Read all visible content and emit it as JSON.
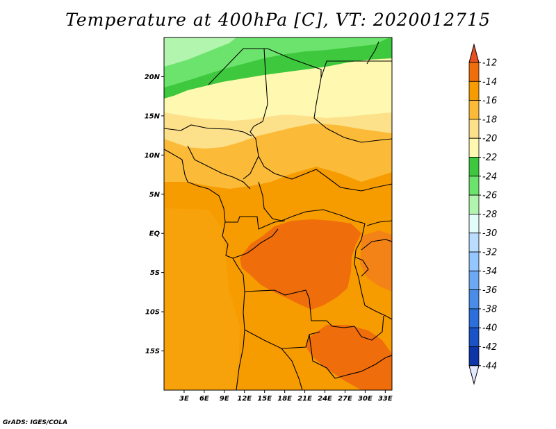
{
  "title": "Temperature at 400hPa [C], VT: 2020012715",
  "credit": "GrADS: IGES/COLA",
  "map": {
    "lon_range": [
      0,
      34
    ],
    "lat_range": [
      -20,
      25
    ],
    "lon_ticks": [
      "3E",
      "6E",
      "9E",
      "12E",
      "15E",
      "18E",
      "21E",
      "24E",
      "27E",
      "30E",
      "33E"
    ],
    "lat_ticks": [
      "20N",
      "15N",
      "10N",
      "5N",
      "EQ",
      "5S",
      "10S",
      "15S"
    ],
    "lon_tick_values": [
      3,
      6,
      9,
      12,
      15,
      18,
      21,
      24,
      27,
      30,
      33
    ],
    "lat_tick_values": [
      20,
      15,
      10,
      5,
      0,
      -5,
      -10,
      -15
    ]
  },
  "colorbar": {
    "labels": [
      "-12",
      "-14",
      "-16",
      "-18",
      "-20",
      "-22",
      "-24",
      "-26",
      "-28",
      "-30",
      "-32",
      "-34",
      "-36",
      "-38",
      "-40",
      "-42",
      "-44"
    ],
    "colors": [
      "#e8501f",
      "#f06d0b",
      "#f79c00",
      "#fbbb38",
      "#fde08a",
      "#fff8b0",
      "#3ec83e",
      "#6ce36c",
      "#b2f5ae",
      "#e2fcfa",
      "#b9dcff",
      "#94c6ff",
      "#6da8f5",
      "#4a8de8",
      "#2a6fdc",
      "#1a52c8",
      "#0e35a8",
      "#0a1a78",
      "#e4e8ff"
    ],
    "top_color": "#e8501f",
    "bottom_color": "#e4e8ff"
  }
}
